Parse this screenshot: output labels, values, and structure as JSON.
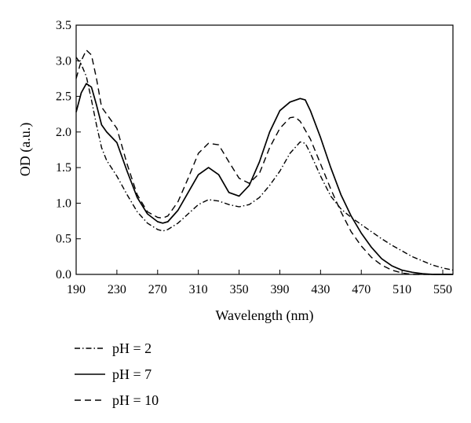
{
  "chart_data": {
    "type": "line",
    "title": "",
    "xlabel": "Wavelength (nm)",
    "ylabel": "OD (a.u.)",
    "xlim": [
      190,
      560
    ],
    "ylim": [
      0,
      3.5
    ],
    "x_ticks": [
      190,
      230,
      270,
      310,
      350,
      390,
      430,
      470,
      510,
      550
    ],
    "y_ticks": [
      "0.0",
      "0.5",
      "1.0",
      "1.5",
      "2.0",
      "2.5",
      "3.0",
      "3.5"
    ],
    "grid": false,
    "legend_position": "bottom-left",
    "series": [
      {
        "name": "pH = 2",
        "style": "dash-dot",
        "color": "#000000",
        "points": [
          [
            190,
            3.05
          ],
          [
            195,
            2.95
          ],
          [
            200,
            2.78
          ],
          [
            205,
            2.45
          ],
          [
            210,
            2.1
          ],
          [
            215,
            1.78
          ],
          [
            220,
            1.6
          ],
          [
            230,
            1.38
          ],
          [
            240,
            1.12
          ],
          [
            250,
            0.88
          ],
          [
            260,
            0.72
          ],
          [
            270,
            0.63
          ],
          [
            275,
            0.61
          ],
          [
            280,
            0.63
          ],
          [
            290,
            0.72
          ],
          [
            300,
            0.85
          ],
          [
            310,
            0.98
          ],
          [
            320,
            1.05
          ],
          [
            330,
            1.03
          ],
          [
            340,
            0.98
          ],
          [
            350,
            0.95
          ],
          [
            360,
            0.98
          ],
          [
            370,
            1.08
          ],
          [
            380,
            1.25
          ],
          [
            390,
            1.45
          ],
          [
            400,
            1.7
          ],
          [
            410,
            1.86
          ],
          [
            415,
            1.84
          ],
          [
            420,
            1.7
          ],
          [
            430,
            1.38
          ],
          [
            440,
            1.1
          ],
          [
            450,
            0.92
          ],
          [
            460,
            0.8
          ],
          [
            470,
            0.7
          ],
          [
            480,
            0.6
          ],
          [
            490,
            0.5
          ],
          [
            500,
            0.41
          ],
          [
            510,
            0.33
          ],
          [
            520,
            0.25
          ],
          [
            530,
            0.19
          ],
          [
            540,
            0.13
          ],
          [
            550,
            0.09
          ],
          [
            560,
            0.06
          ]
        ]
      },
      {
        "name": "pH = 7",
        "style": "solid",
        "color": "#000000",
        "points": [
          [
            190,
            2.28
          ],
          [
            195,
            2.55
          ],
          [
            200,
            2.68
          ],
          [
            205,
            2.63
          ],
          [
            210,
            2.38
          ],
          [
            215,
            2.1
          ],
          [
            220,
            2.0
          ],
          [
            230,
            1.85
          ],
          [
            240,
            1.45
          ],
          [
            250,
            1.08
          ],
          [
            260,
            0.85
          ],
          [
            270,
            0.74
          ],
          [
            275,
            0.72
          ],
          [
            280,
            0.74
          ],
          [
            290,
            0.9
          ],
          [
            300,
            1.15
          ],
          [
            310,
            1.4
          ],
          [
            320,
            1.5
          ],
          [
            330,
            1.4
          ],
          [
            340,
            1.15
          ],
          [
            350,
            1.1
          ],
          [
            360,
            1.25
          ],
          [
            370,
            1.58
          ],
          [
            380,
            2.0
          ],
          [
            390,
            2.3
          ],
          [
            400,
            2.42
          ],
          [
            410,
            2.47
          ],
          [
            415,
            2.45
          ],
          [
            420,
            2.3
          ],
          [
            430,
            1.92
          ],
          [
            440,
            1.5
          ],
          [
            450,
            1.12
          ],
          [
            460,
            0.82
          ],
          [
            470,
            0.58
          ],
          [
            480,
            0.38
          ],
          [
            490,
            0.22
          ],
          [
            500,
            0.12
          ],
          [
            510,
            0.06
          ],
          [
            520,
            0.03
          ],
          [
            530,
            0.01
          ],
          [
            540,
            0.0
          ],
          [
            560,
            0.0
          ]
        ]
      },
      {
        "name": "pH = 10",
        "style": "dashed",
        "color": "#000000",
        "points": [
          [
            190,
            2.75
          ],
          [
            195,
            3.0
          ],
          [
            200,
            3.15
          ],
          [
            205,
            3.08
          ],
          [
            210,
            2.75
          ],
          [
            215,
            2.35
          ],
          [
            220,
            2.25
          ],
          [
            230,
            2.05
          ],
          [
            240,
            1.55
          ],
          [
            250,
            1.12
          ],
          [
            260,
            0.88
          ],
          [
            270,
            0.8
          ],
          [
            275,
            0.79
          ],
          [
            280,
            0.82
          ],
          [
            290,
            1.02
          ],
          [
            300,
            1.35
          ],
          [
            310,
            1.7
          ],
          [
            320,
            1.84
          ],
          [
            330,
            1.82
          ],
          [
            340,
            1.58
          ],
          [
            350,
            1.35
          ],
          [
            360,
            1.28
          ],
          [
            370,
            1.42
          ],
          [
            380,
            1.78
          ],
          [
            390,
            2.05
          ],
          [
            400,
            2.2
          ],
          [
            405,
            2.21
          ],
          [
            410,
            2.15
          ],
          [
            420,
            1.9
          ],
          [
            430,
            1.55
          ],
          [
            440,
            1.2
          ],
          [
            450,
            0.88
          ],
          [
            460,
            0.6
          ],
          [
            470,
            0.4
          ],
          [
            480,
            0.24
          ],
          [
            490,
            0.13
          ],
          [
            500,
            0.06
          ],
          [
            510,
            0.02
          ],
          [
            520,
            0.0
          ],
          [
            560,
            0.0
          ]
        ]
      }
    ]
  },
  "legend": [
    {
      "label": "pH = 2",
      "icon": "dash-dot-line-icon"
    },
    {
      "label": "pH = 7",
      "icon": "solid-line-icon"
    },
    {
      "label": "pH = 10",
      "icon": "dashed-line-icon"
    }
  ]
}
